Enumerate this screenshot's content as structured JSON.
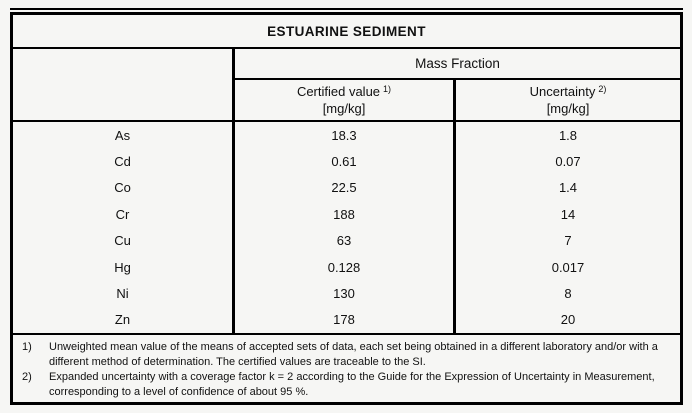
{
  "page": {
    "background": "#f6f6f4",
    "border_color": "#000000",
    "text_color": "#111111"
  },
  "table": {
    "title": "ESTUARINE SEDIMENT",
    "group_header": "Mass Fraction",
    "columns": [
      {
        "label": "Certified value",
        "footnote_ref": "1)",
        "unit": "[mg/kg]"
      },
      {
        "label": "Uncertainty",
        "footnote_ref": "2)",
        "unit": "[mg/kg]"
      }
    ],
    "rows": [
      {
        "element": "As",
        "certified": "18.3",
        "uncertainty": "1.8"
      },
      {
        "element": "Cd",
        "certified": "0.61",
        "uncertainty": "0.07"
      },
      {
        "element": "Co",
        "certified": "22.5",
        "uncertainty": "1.4"
      },
      {
        "element": "Cr",
        "certified": "188",
        "uncertainty": "14"
      },
      {
        "element": "Cu",
        "certified": "63",
        "uncertainty": "7"
      },
      {
        "element": "Hg",
        "certified": "0.128",
        "uncertainty": "0.017"
      },
      {
        "element": "Ni",
        "certified": "130",
        "uncertainty": "8"
      },
      {
        "element": "Zn",
        "certified": "178",
        "uncertainty": "20"
      }
    ],
    "footnotes": [
      {
        "marker": "1)",
        "text": "Unweighted mean value of the means of accepted sets of data, each set being obtained in a different laboratory and/or with a different method of determination. The certified values are traceable to the SI."
      },
      {
        "marker": "2)",
        "text": "Expanded uncertainty with a coverage factor k = 2 according to the Guide for the Expression of Uncertainty in Measurement, corresponding to a level of confidence of about 95 %."
      }
    ]
  }
}
